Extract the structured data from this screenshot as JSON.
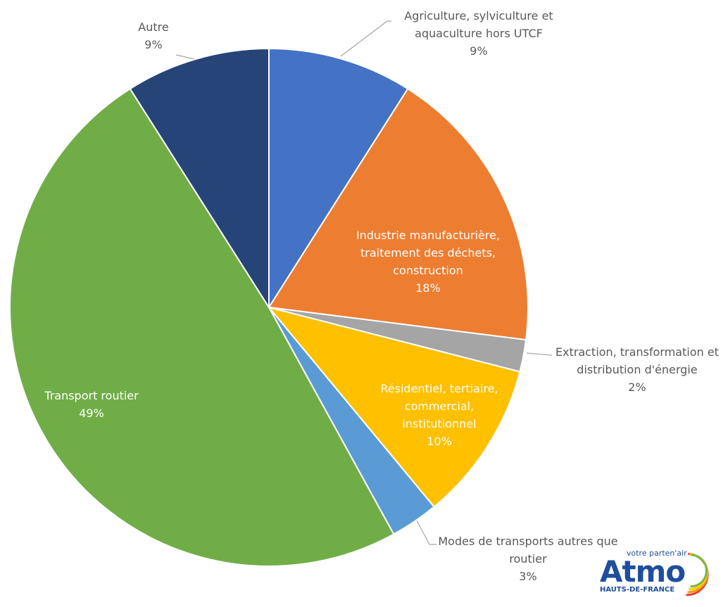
{
  "chart_data": {
    "type": "pie",
    "categories": [
      "Agriculture, sylviculture et aquaculture hors UTCF",
      "Industrie manufacturière, traitement des déchets, construction",
      "Extraction, transformation et distribution d'énergie",
      "Résidentiel, tertiaire, commercial, institutionnel",
      "Modes de transports autres que routier",
      "Transport routier",
      "Autre"
    ],
    "values": [
      9,
      18,
      2,
      10,
      3,
      49,
      9
    ],
    "value_labels": [
      "9%",
      "18%",
      "2%",
      "10%",
      "3%",
      "49%",
      "9%"
    ],
    "colors": [
      "#4472c4",
      "#ed7d31",
      "#a5a5a5",
      "#ffc000",
      "#5b9bd5",
      "#70ad47",
      "#264478"
    ]
  },
  "logo": {
    "tagline": "votre parten'air",
    "name": "Atmo",
    "region": "HAUTS-DE-FRANCE"
  }
}
